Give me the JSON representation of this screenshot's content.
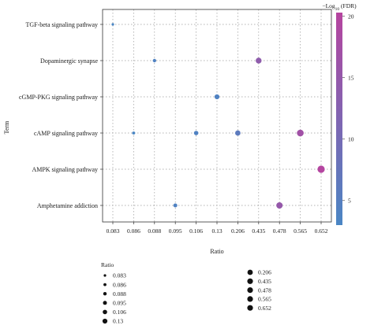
{
  "chart_data": {
    "type": "scatter",
    "title": "",
    "xlabel": "Ratio",
    "ylabel": "Term",
    "categories_x": [
      "0.083",
      "0.086",
      "0.088",
      "0.095",
      "0.106",
      "0.13",
      "0.206",
      "0.435",
      "0.478",
      "0.565",
      "0.652"
    ],
    "categories_y": [
      "TGF-beta signaling pathway",
      "Dopaminergic synapse",
      "cGMP-PKG signaling pathway",
      "cAMP signaling pathway",
      "AMPK signaling pathway",
      "Amphetamine addiction"
    ],
    "points": [
      {
        "term": "TGF-beta signaling pathway",
        "ratio": "0.083",
        "fdr": 3
      },
      {
        "term": "Dopaminergic synapse",
        "ratio": "0.088",
        "fdr": 4
      },
      {
        "term": "Dopaminergic synapse",
        "ratio": "0.435",
        "fdr": 14
      },
      {
        "term": "cGMP-PKG signaling pathway",
        "ratio": "0.13",
        "fdr": 4
      },
      {
        "term": "cAMP signaling pathway",
        "ratio": "0.086",
        "fdr": 3
      },
      {
        "term": "cAMP signaling pathway",
        "ratio": "0.106",
        "fdr": 4
      },
      {
        "term": "cAMP signaling pathway",
        "ratio": "0.206",
        "fdr": 6
      },
      {
        "term": "cAMP signaling pathway",
        "ratio": "0.565",
        "fdr": 17
      },
      {
        "term": "AMPK signaling pathway",
        "ratio": "0.652",
        "fdr": 20
      },
      {
        "term": "Amphetamine addiction",
        "ratio": "0.095",
        "fdr": 4
      },
      {
        "term": "Amphetamine addiction",
        "ratio": "0.478",
        "fdr": 15
      }
    ],
    "color_scale": {
      "label_prefix": "−Log",
      "label_sub": "10",
      "label_suffix": " (FDR)",
      "min": 3,
      "max": 20.3,
      "ticks": [
        5,
        10,
        15,
        20
      ],
      "low_color": "#4a86c4",
      "high_color": "#b6449f"
    },
    "size_legend": {
      "title": "Ratio",
      "entries": [
        "0.083",
        "0.086",
        "0.088",
        "0.095",
        "0.106",
        "0.13",
        "0.206",
        "0.435",
        "0.478",
        "0.565",
        "0.652"
      ]
    },
    "grid": true
  }
}
